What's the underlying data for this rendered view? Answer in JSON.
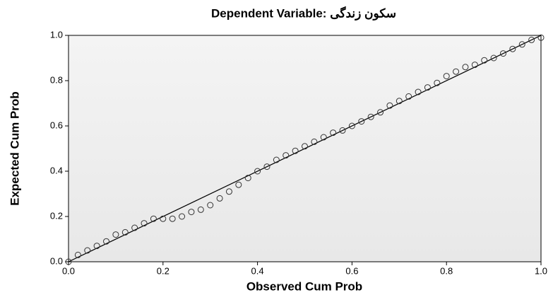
{
  "chart_data": {
    "type": "scatter",
    "title": "Dependent Variable: سکون زندگی",
    "x_label": "Observed Cum Prob",
    "y_label": "Expected Cum Prob",
    "x": [
      0,
      0.02,
      0.04,
      0.06,
      0.08,
      0.1,
      0.12,
      0.14,
      0.16,
      0.18,
      0.2,
      0.22,
      0.24,
      0.26,
      0.28,
      0.3,
      0.32,
      0.34,
      0.36,
      0.38,
      0.4,
      0.42,
      0.44,
      0.46,
      0.48,
      0.5,
      0.52,
      0.54,
      0.56,
      0.58,
      0.6,
      0.62,
      0.64,
      0.66,
      0.68,
      0.7,
      0.72,
      0.74,
      0.76,
      0.78,
      0.8,
      0.82,
      0.84,
      0.86,
      0.88,
      0.9,
      0.92,
      0.94,
      0.96,
      0.98,
      1
    ],
    "values": [
      0,
      0.03,
      0.05,
      0.07,
      0.09,
      0.12,
      0.13,
      0.15,
      0.17,
      0.19,
      0.19,
      0.19,
      0.2,
      0.22,
      0.23,
      0.25,
      0.28,
      0.31,
      0.34,
      0.37,
      0.4,
      0.42,
      0.45,
      0.47,
      0.49,
      0.51,
      0.53,
      0.55,
      0.57,
      0.58,
      0.6,
      0.62,
      0.64,
      0.66,
      0.69,
      0.71,
      0.73,
      0.75,
      0.77,
      0.79,
      0.82,
      0.84,
      0.86,
      0.87,
      0.89,
      0.9,
      0.92,
      0.94,
      0.96,
      0.98,
      0.99
    ],
    "color": "#333333",
    "xlim": [
      0,
      1
    ],
    "ylim": [
      0,
      1
    ],
    "xticks": [
      {
        "value": 0,
        "label": "0.0"
      },
      0.2,
      0.4,
      0.6,
      0.8,
      {
        "value": 1,
        "label": "1.0"
      }
    ],
    "yticks": [
      {
        "value": 0,
        "label": "0.0"
      },
      0.2,
      0.4,
      0.6,
      0.8,
      {
        "value": 1,
        "label": "1.0"
      }
    ]
  }
}
